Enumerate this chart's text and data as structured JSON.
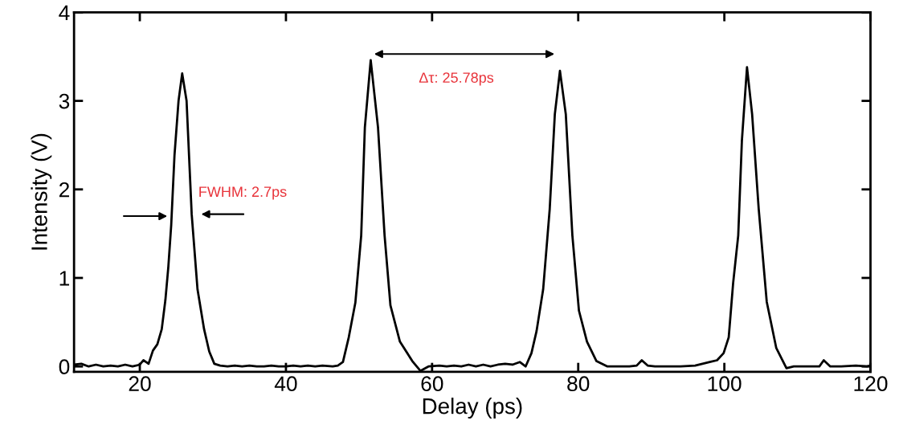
{
  "chart_data": {
    "type": "line",
    "xlabel": "Delay (ps)",
    "ylabel": "Intensity (V)",
    "xlim": [
      11,
      120
    ],
    "ylim": [
      -0.06,
      4
    ],
    "xticks": [
      20,
      40,
      60,
      80,
      100,
      120
    ],
    "yticks": [
      0,
      1,
      2,
      3,
      4
    ],
    "grid": false,
    "marker": "none",
    "line_style": "solid",
    "series": [
      {
        "color": "#000000",
        "x": [
          11,
          12,
          13,
          14,
          15,
          16,
          17,
          18,
          19,
          20,
          20.5,
          21.2,
          21.8,
          22.4,
          23.0,
          23.5,
          23.9,
          24.3,
          24.75,
          25.3,
          25.8,
          26.4,
          27.1,
          27.9,
          28.8,
          29.5,
          30.2,
          31,
          32,
          33,
          34,
          35,
          36,
          37,
          38,
          39,
          40,
          41,
          42,
          43,
          44,
          45,
          46.4,
          47.1,
          47.8,
          48.6,
          49.5,
          50.3,
          50.8,
          51.6,
          52.6,
          53.5,
          54.3,
          55.6,
          57.3,
          58.4,
          59.5,
          61,
          62,
          63,
          64,
          65,
          66,
          67,
          68,
          69,
          70,
          71,
          72,
          72.8,
          73.6,
          74.3,
          75.2,
          76.1,
          76.8,
          77.5,
          78.3,
          79.2,
          80.1,
          81.2,
          82.5,
          84,
          85,
          86,
          87,
          88,
          88.7,
          89.5,
          90.5,
          92,
          94,
          96,
          97,
          98,
          99,
          99.9,
          100.6,
          101.2,
          101.9,
          102.4,
          103.1,
          103.8,
          104.7,
          105.8,
          107.1,
          108.5,
          109.5,
          110.5,
          112,
          113,
          113.6,
          114.5,
          116,
          118,
          119.5,
          120
        ],
        "values": [
          0.02,
          0.03,
          0.0,
          0.02,
          0.0,
          0.01,
          0.0,
          0.02,
          0.0,
          0.02,
          0.07,
          0.03,
          0.18,
          0.25,
          0.42,
          0.75,
          1.12,
          1.6,
          2.39,
          3.0,
          3.31,
          3.0,
          1.72,
          0.87,
          0.42,
          0.17,
          0.03,
          0.01,
          0.0,
          0.01,
          0.0,
          0.01,
          0.0,
          0.0,
          0.01,
          0.0,
          0.0,
          0.01,
          0.0,
          0.01,
          0.0,
          0.01,
          0.0,
          0.01,
          0.05,
          0.33,
          0.72,
          1.48,
          2.7,
          3.46,
          2.7,
          1.48,
          0.69,
          0.28,
          0.06,
          -0.05,
          0.0,
          0.01,
          0.0,
          0.01,
          0.0,
          0.02,
          0.0,
          0.02,
          0.0,
          0.02,
          0.03,
          0.02,
          0.05,
          0.0,
          0.15,
          0.4,
          0.87,
          1.78,
          2.85,
          3.34,
          2.85,
          1.48,
          0.63,
          0.28,
          0.06,
          0.0,
          0.0,
          0.0,
          0.0,
          0.01,
          0.07,
          0.01,
          0.0,
          0.0,
          0.0,
          0.01,
          0.03,
          0.05,
          0.07,
          0.15,
          0.33,
          0.94,
          1.48,
          2.55,
          3.38,
          2.85,
          1.78,
          0.73,
          0.21,
          -0.02,
          0.0,
          0.0,
          0.0,
          0.0,
          0.07,
          0.0,
          0.0,
          0.01,
          0.0,
          0.01
        ]
      }
    ],
    "annotations": [
      "FWHM: 2.7ps",
      "Δτ: 25.78ps"
    ]
  }
}
